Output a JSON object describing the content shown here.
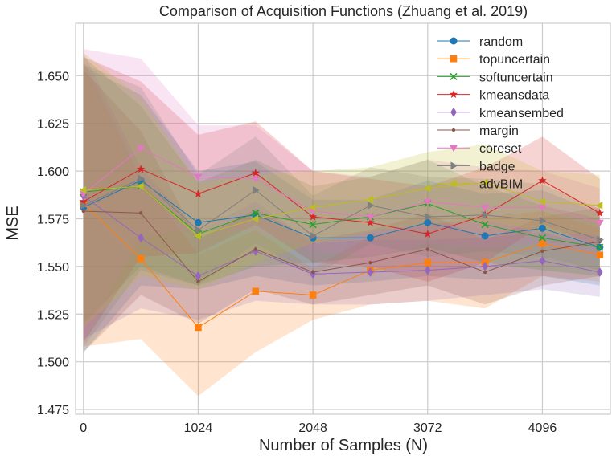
{
  "chart_data": {
    "type": "line",
    "title": "Comparison of Acquisition Functions (Zhuang et al. 2019)",
    "xlabel": "Number of Samples (N)",
    "ylabel": "MSE",
    "xlim": [
      -70,
      4710
    ],
    "ylim": [
      1.4725,
      1.6775
    ],
    "xticks": [
      0,
      1024,
      2048,
      3072,
      4096
    ],
    "xtick_labels": [
      "0",
      "1024",
      "2048",
      "3072",
      "4096"
    ],
    "yticks": [
      1.475,
      1.5,
      1.525,
      1.55,
      1.575,
      1.6,
      1.625,
      1.65
    ],
    "ytick_labels": [
      "1.475",
      "1.500",
      "1.525",
      "1.550",
      "1.575",
      "1.600",
      "1.625",
      "1.650"
    ],
    "grid": true,
    "legend_position": "top-right",
    "x": [
      0,
      512,
      1024,
      1536,
      2048,
      2560,
      3072,
      3584,
      4096,
      4608
    ],
    "series": [
      {
        "name": "random",
        "color": "#1f77b4",
        "marker": "circle",
        "values": [
          1.581,
          1.595,
          1.573,
          1.577,
          1.565,
          1.565,
          1.573,
          1.566,
          1.57,
          1.56
        ],
        "lower": [
          1.505,
          1.54,
          1.538,
          1.545,
          1.54,
          1.542,
          1.545,
          1.543,
          1.545,
          1.54
        ],
        "upper": [
          1.655,
          1.64,
          1.6,
          1.605,
          1.585,
          1.585,
          1.595,
          1.588,
          1.59,
          1.578
        ]
      },
      {
        "name": "topuncertain",
        "color": "#ff7f0e",
        "marker": "square",
        "values": [
          1.583,
          1.554,
          1.518,
          1.537,
          1.535,
          1.548,
          1.552,
          1.552,
          1.562,
          1.556
        ],
        "lower": [
          1.508,
          1.512,
          1.482,
          1.505,
          1.522,
          1.53,
          1.532,
          1.528,
          1.545,
          1.542
        ],
        "upper": [
          1.658,
          1.597,
          1.556,
          1.569,
          1.549,
          1.566,
          1.572,
          1.576,
          1.579,
          1.57
        ]
      },
      {
        "name": "softuncertain",
        "color": "#2ca02c",
        "marker": "x",
        "values": [
          1.589,
          1.592,
          1.567,
          1.578,
          1.572,
          1.576,
          1.583,
          1.572,
          1.565,
          1.56
        ],
        "lower": [
          1.52,
          1.55,
          1.54,
          1.55,
          1.552,
          1.555,
          1.56,
          1.552,
          1.548,
          1.545
        ],
        "upper": [
          1.66,
          1.634,
          1.594,
          1.606,
          1.592,
          1.597,
          1.606,
          1.592,
          1.582,
          1.575
        ]
      },
      {
        "name": "kmeansdata",
        "color": "#d62728",
        "marker": "star",
        "values": [
          1.584,
          1.601,
          1.588,
          1.599,
          1.576,
          1.573,
          1.567,
          1.577,
          1.595,
          1.578
        ],
        "lower": [
          1.51,
          1.555,
          1.557,
          1.572,
          1.552,
          1.55,
          1.542,
          1.552,
          1.572,
          1.56
        ],
        "upper": [
          1.66,
          1.647,
          1.619,
          1.626,
          1.6,
          1.596,
          1.592,
          1.602,
          1.618,
          1.596
        ]
      },
      {
        "name": "kmeansembed",
        "color": "#9467bd",
        "marker": "diamond",
        "values": [
          1.587,
          1.565,
          1.545,
          1.558,
          1.546,
          1.547,
          1.548,
          1.55,
          1.553,
          1.547
        ],
        "lower": [
          1.512,
          1.528,
          1.522,
          1.532,
          1.53,
          1.53,
          1.532,
          1.535,
          1.538,
          1.534
        ],
        "upper": [
          1.662,
          1.602,
          1.568,
          1.584,
          1.562,
          1.564,
          1.564,
          1.565,
          1.568,
          1.56
        ]
      },
      {
        "name": "margin",
        "color": "#8c564b",
        "marker": "point",
        "values": [
          1.579,
          1.578,
          1.542,
          1.559,
          1.547,
          1.552,
          1.559,
          1.547,
          1.558,
          1.563
        ],
        "lower": [
          1.505,
          1.535,
          1.52,
          1.538,
          1.53,
          1.535,
          1.54,
          1.53,
          1.54,
          1.545
        ],
        "upper": [
          1.653,
          1.621,
          1.564,
          1.58,
          1.564,
          1.569,
          1.578,
          1.564,
          1.576,
          1.581
        ]
      },
      {
        "name": "coreset",
        "color": "#e377c2",
        "marker": "triangle-down",
        "values": [
          1.588,
          1.612,
          1.597,
          1.596,
          1.579,
          1.576,
          1.584,
          1.581,
          1.581,
          1.573
        ],
        "lower": [
          1.512,
          1.565,
          1.57,
          1.568,
          1.558,
          1.555,
          1.562,
          1.56,
          1.562,
          1.555
        ],
        "upper": [
          1.664,
          1.659,
          1.624,
          1.624,
          1.6,
          1.597,
          1.606,
          1.602,
          1.6,
          1.591
        ]
      },
      {
        "name": "badge",
        "color": "#7f7f7f",
        "marker": "triangle-right",
        "values": [
          1.582,
          1.596,
          1.569,
          1.59,
          1.566,
          1.582,
          1.576,
          1.577,
          1.574,
          1.564
        ],
        "lower": [
          1.508,
          1.548,
          1.54,
          1.562,
          1.545,
          1.562,
          1.555,
          1.558,
          1.555,
          1.548
        ],
        "upper": [
          1.656,
          1.644,
          1.598,
          1.618,
          1.587,
          1.602,
          1.597,
          1.596,
          1.593,
          1.58
        ]
      },
      {
        "name": "advBIM",
        "color": "#bcbd22",
        "marker": "triangle-left",
        "values": [
          1.59,
          1.592,
          1.566,
          1.575,
          1.581,
          1.585,
          1.591,
          1.594,
          1.584,
          1.582
        ],
        "lower": [
          1.518,
          1.545,
          1.538,
          1.552,
          1.562,
          1.568,
          1.572,
          1.574,
          1.568,
          1.566
        ],
        "upper": [
          1.662,
          1.639,
          1.594,
          1.598,
          1.6,
          1.602,
          1.61,
          1.614,
          1.6,
          1.598
        ]
      }
    ]
  }
}
